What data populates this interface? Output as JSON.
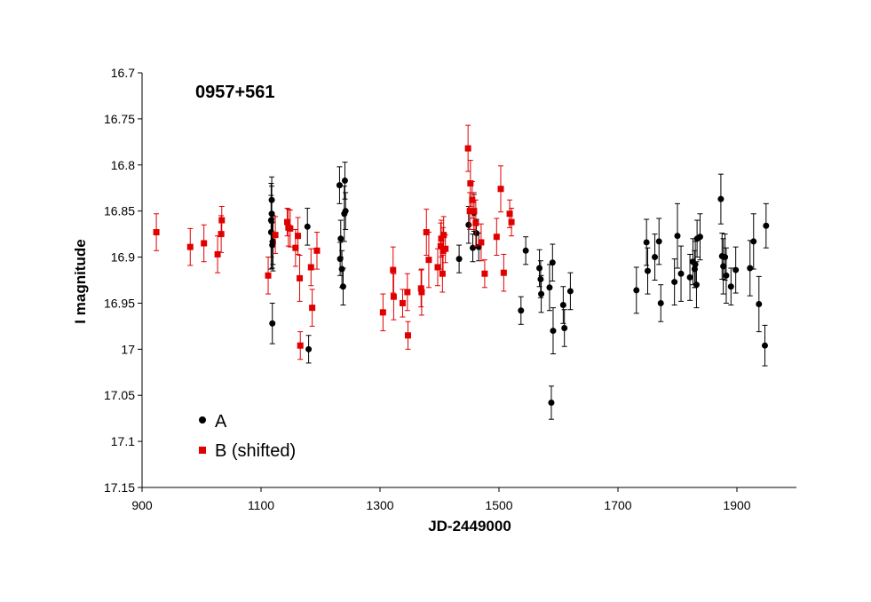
{
  "chart_data": {
    "type": "scatter",
    "title": "0957+561",
    "xlabel": "JD-2449000",
    "ylabel": "I magnitude",
    "xlim": [
      900,
      2000
    ],
    "ylim": [
      16.7,
      17.15
    ],
    "y_inverted": true,
    "grid": false,
    "legend_placement": "bottom-left",
    "x_ticks": [
      900,
      1100,
      1300,
      1500,
      1700,
      1900
    ],
    "y_ticks": [
      16.7,
      16.75,
      16.8,
      16.85,
      16.9,
      16.95,
      17,
      17.05,
      17.1,
      17.15
    ],
    "x_tick_labels": [
      "900",
      "1100",
      "1300",
      "1500",
      "1700",
      "1900"
    ],
    "y_tick_labels": [
      "16.7",
      "16.75",
      "16.8",
      "16.85",
      "16.9",
      "16.95",
      "17",
      "17.05",
      "17.1",
      "17.15"
    ],
    "series": [
      {
        "name": "A",
        "color": "#000000",
        "marker": "circle",
        "x": [
          1117,
          1117,
          1118,
          1118,
          1119,
          1119,
          1120,
          1120,
          1178,
          1180,
          1232,
          1233,
          1234,
          1236,
          1238,
          1240,
          1241,
          1242,
          1433,
          1449,
          1456,
          1458,
          1462,
          1466,
          1537,
          1545,
          1568,
          1570,
          1571,
          1585,
          1588,
          1590,
          1591,
          1608,
          1610,
          1620,
          1731,
          1748,
          1750,
          1762,
          1769,
          1772,
          1795,
          1800,
          1806,
          1821,
          1826,
          1829,
          1830,
          1832,
          1833,
          1838,
          1873,
          1875,
          1877,
          1880,
          1882,
          1890,
          1898,
          1922,
          1928,
          1937,
          1947,
          1949
        ],
        "y": [
          16.873,
          16.86,
          16.853,
          16.838,
          16.972,
          16.887,
          16.885,
          16.883,
          16.867,
          17.0,
          16.822,
          16.902,
          16.88,
          16.913,
          16.932,
          16.853,
          16.817,
          16.85,
          16.902,
          16.865,
          16.89,
          16.852,
          16.874,
          16.889,
          16.958,
          16.893,
          16.912,
          16.924,
          16.94,
          16.933,
          17.058,
          16.906,
          16.98,
          16.952,
          16.977,
          16.937,
          16.936,
          16.884,
          16.915,
          16.9,
          16.883,
          16.95,
          16.927,
          16.877,
          16.918,
          16.922,
          16.905,
          16.913,
          16.908,
          16.93,
          16.88,
          16.878,
          16.837,
          16.899,
          16.91,
          16.9,
          16.92,
          16.932,
          16.914,
          16.912,
          16.883,
          16.951,
          16.996,
          16.866
        ],
        "err": [
          0.04,
          0.04,
          0.03,
          0.025,
          0.022,
          0.025,
          0.03,
          0.025,
          0.02,
          0.015,
          0.02,
          0.018,
          0.02,
          0.02,
          0.02,
          0.03,
          0.02,
          0.02,
          0.015,
          0.02,
          0.015,
          0.02,
          0.015,
          0.015,
          0.015,
          0.015,
          0.02,
          0.02,
          0.02,
          0.025,
          0.018,
          0.02,
          0.025,
          0.02,
          0.02,
          0.02,
          0.025,
          0.025,
          0.025,
          0.025,
          0.025,
          0.02,
          0.025,
          0.035,
          0.03,
          0.025,
          0.025,
          0.02,
          0.025,
          0.025,
          0.02,
          0.025,
          0.027,
          0.025,
          0.03,
          0.025,
          0.03,
          0.02,
          0.025,
          0.03,
          0.03,
          0.03,
          0.022,
          0.024
        ]
      },
      {
        "name": "B (shifted)",
        "color": "#e00000",
        "marker": "square",
        "x": [
          924,
          981,
          1004,
          1027,
          1033,
          1034,
          1112,
          1124,
          1144,
          1146,
          1149,
          1158,
          1162,
          1165,
          1166,
          1184,
          1186,
          1194,
          1305,
          1322,
          1323,
          1338,
          1346,
          1347,
          1369,
          1370,
          1378,
          1382,
          1397,
          1402,
          1403,
          1405,
          1406,
          1407,
          1410,
          1448,
          1451,
          1452,
          1455,
          1458,
          1461,
          1470,
          1476,
          1496,
          1503,
          1508,
          1518,
          1521
        ],
        "y": [
          16.873,
          16.889,
          16.885,
          16.897,
          16.875,
          16.86,
          16.92,
          16.876,
          16.862,
          16.868,
          16.869,
          16.89,
          16.877,
          16.923,
          16.996,
          16.911,
          16.955,
          16.893,
          16.96,
          16.914,
          16.943,
          16.95,
          16.938,
          16.985,
          16.934,
          16.938,
          16.873,
          16.903,
          16.911,
          16.888,
          16.88,
          16.918,
          16.893,
          16.876,
          16.891,
          16.782,
          16.85,
          16.82,
          16.838,
          16.85,
          16.863,
          16.884,
          16.918,
          16.878,
          16.826,
          16.917,
          16.853,
          16.862
        ],
        "err": [
          0.02,
          0.02,
          0.02,
          0.02,
          0.02,
          0.015,
          0.02,
          0.02,
          0.015,
          0.02,
          0.02,
          0.02,
          0.02,
          0.025,
          0.015,
          0.02,
          0.02,
          0.02,
          0.02,
          0.025,
          0.025,
          0.015,
          0.02,
          0.015,
          0.02,
          0.025,
          0.025,
          0.03,
          0.02,
          0.025,
          0.02,
          0.02,
          0.025,
          0.02,
          0.015,
          0.025,
          0.02,
          0.025,
          0.02,
          0.02,
          0.025,
          0.02,
          0.015,
          0.02,
          0.025,
          0.02,
          0.015,
          0.015
        ]
      }
    ]
  }
}
